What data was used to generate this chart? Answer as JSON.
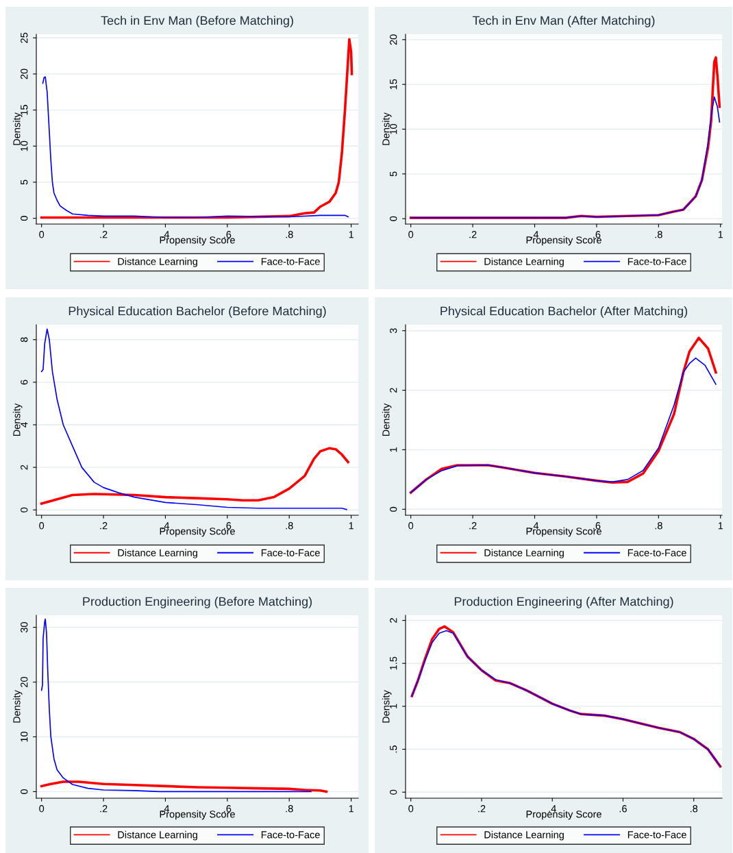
{
  "chart_data": [
    {
      "type": "line",
      "title": "Tech in Env Man (Before Matching)",
      "xlabel": "Propensity Score",
      "ylabel": "Density",
      "xlim": [
        -0.017,
        1.023
      ],
      "ylim": [
        -0.8,
        25.5
      ],
      "xticks": [
        0,
        {
          "value": 0.2,
          "label": ".2"
        },
        {
          "value": 0.4,
          "label": ".4"
        },
        {
          "value": 0.6,
          "label": ".6"
        },
        {
          "value": 0.8,
          "label": ".8"
        },
        1
      ],
      "yticks": [
        0,
        5,
        10,
        15,
        20,
        25
      ],
      "grid": "y",
      "legend": "bottom",
      "series": [
        {
          "name": "Distance Learning",
          "color": "#ff0000",
          "x": [
            0.0,
            0.2,
            0.4,
            0.6,
            0.8,
            0.85,
            0.88,
            0.9,
            0.93,
            0.95,
            0.96,
            0.97,
            0.98,
            0.99,
            0.994,
            1.0,
            1.002
          ],
          "values": [
            0.1,
            0.1,
            0.1,
            0.1,
            0.3,
            0.7,
            0.8,
            1.6,
            2.3,
            3.5,
            5,
            9,
            15,
            22,
            24.8,
            23,
            20
          ]
        },
        {
          "name": "Face-to-Face",
          "color": "#0000ff",
          "x": [
            0.004,
            0.008,
            0.012,
            0.018,
            0.025,
            0.03,
            0.035,
            0.04,
            0.05,
            0.06,
            0.08,
            0.1,
            0.15,
            0.2,
            0.3,
            0.4,
            0.5,
            0.6,
            0.8,
            0.9,
            0.98,
            0.99
          ],
          "values": [
            18.7,
            19.5,
            19.6,
            17.5,
            12,
            8,
            5,
            3.5,
            2.5,
            1.7,
            1.1,
            0.6,
            0.4,
            0.3,
            0.3,
            0.1,
            0.1,
            0.3,
            0.2,
            0.4,
            0.4,
            0.2
          ]
        }
      ]
    },
    {
      "type": "line",
      "title": "Tech in Env Man (After Matching)",
      "xlabel": "Propensity Score",
      "ylabel": "Density",
      "xlim": [
        -0.017,
        1.005
      ],
      "ylim": [
        -0.6,
        20.6
      ],
      "xticks": [
        0,
        {
          "value": 0.2,
          "label": ".2"
        },
        {
          "value": 0.4,
          "label": ".4"
        },
        {
          "value": 0.6,
          "label": ".6"
        },
        {
          "value": 0.8,
          "label": ".8"
        },
        1
      ],
      "yticks": [
        0,
        5,
        10,
        15,
        20
      ],
      "grid": "y",
      "legend": "bottom",
      "series": [
        {
          "name": "Distance Learning",
          "color": "#ff0000",
          "x": [
            0.0,
            0.5,
            0.55,
            0.6,
            0.7,
            0.8,
            0.85,
            0.88,
            0.92,
            0.94,
            0.96,
            0.97,
            0.976,
            0.98,
            0.985,
            0.99,
            0.997
          ],
          "values": [
            0.1,
            0.1,
            0.3,
            0.2,
            0.3,
            0.4,
            0.8,
            1.0,
            2.5,
            4.3,
            8,
            11,
            15,
            17.5,
            18,
            16,
            12.5
          ]
        },
        {
          "name": "Face-to-Face",
          "color": "#0000ff",
          "x": [
            0.0,
            0.5,
            0.55,
            0.6,
            0.7,
            0.8,
            0.85,
            0.88,
            0.92,
            0.94,
            0.96,
            0.97,
            0.98,
            0.99,
            0.997
          ],
          "values": [
            0.1,
            0.1,
            0.3,
            0.2,
            0.3,
            0.4,
            0.8,
            1.0,
            2.5,
            4.3,
            8.5,
            11.5,
            13.6,
            12.5,
            10.8
          ]
        }
      ]
    },
    {
      "type": "line",
      "title": "Physical Education Bachelor (Before Matching)",
      "xlabel": "Propensity Score",
      "ylabel": "Density",
      "xlim": [
        -0.017,
        1.023
      ],
      "ylim": [
        -0.25,
        8.7
      ],
      "xticks": [
        0,
        {
          "value": 0.2,
          "label": ".2"
        },
        {
          "value": 0.4,
          "label": ".4"
        },
        {
          "value": 0.6,
          "label": ".6"
        },
        {
          "value": 0.8,
          "label": ".8"
        },
        1
      ],
      "yticks": [
        0,
        2,
        4,
        6,
        8
      ],
      "grid": "y",
      "legend": "bottom",
      "series": [
        {
          "name": "Distance Learning",
          "color": "#ff0000",
          "x": [
            0.0,
            0.05,
            0.1,
            0.17,
            0.3,
            0.4,
            0.5,
            0.6,
            0.65,
            0.7,
            0.75,
            0.8,
            0.85,
            0.88,
            0.9,
            0.93,
            0.95,
            0.97,
            0.99
          ],
          "values": [
            0.3,
            0.5,
            0.7,
            0.75,
            0.7,
            0.6,
            0.55,
            0.5,
            0.45,
            0.45,
            0.6,
            1.0,
            1.6,
            2.4,
            2.75,
            2.9,
            2.85,
            2.6,
            2.25
          ]
        },
        {
          "name": "Face-to-Face",
          "color": "#0000ff",
          "x": [
            0.0,
            0.005,
            0.01,
            0.018,
            0.025,
            0.035,
            0.05,
            0.07,
            0.1,
            0.13,
            0.17,
            0.2,
            0.25,
            0.3,
            0.4,
            0.5,
            0.6,
            0.7,
            0.8,
            0.97,
            0.985
          ],
          "values": [
            6.5,
            6.6,
            7.8,
            8.5,
            8,
            6.5,
            5.2,
            4,
            3,
            2,
            1.3,
            1.05,
            0.8,
            0.6,
            0.35,
            0.25,
            0.12,
            0.08,
            0.08,
            0.08,
            0.02
          ]
        }
      ]
    },
    {
      "type": "line",
      "title": "Physical Education Bachelor (After Matching)",
      "xlabel": "Propensity Score",
      "ylabel": "Density",
      "xlim": [
        -0.017,
        1.005
      ],
      "ylim": [
        -0.1,
        3.1
      ],
      "xticks": [
        0,
        {
          "value": 0.2,
          "label": ".2"
        },
        {
          "value": 0.4,
          "label": ".4"
        },
        {
          "value": 0.6,
          "label": ".6"
        },
        {
          "value": 0.8,
          "label": ".8"
        },
        1
      ],
      "yticks": [
        0,
        1,
        2,
        3
      ],
      "grid": "y",
      "legend": "bottom",
      "series": [
        {
          "name": "Distance Learning",
          "color": "#ff0000",
          "x": [
            0.0,
            0.05,
            0.1,
            0.15,
            0.25,
            0.3,
            0.4,
            0.5,
            0.6,
            0.65,
            0.7,
            0.75,
            0.8,
            0.85,
            0.88,
            0.9,
            0.93,
            0.96,
            0.985
          ],
          "values": [
            0.28,
            0.5,
            0.68,
            0.74,
            0.74,
            0.7,
            0.61,
            0.55,
            0.48,
            0.45,
            0.46,
            0.6,
            0.98,
            1.6,
            2.3,
            2.65,
            2.88,
            2.7,
            2.3
          ]
        },
        {
          "name": "Face-to-Face",
          "color": "#0000ff",
          "x": [
            0.0,
            0.05,
            0.1,
            0.15,
            0.25,
            0.3,
            0.4,
            0.5,
            0.6,
            0.65,
            0.7,
            0.75,
            0.8,
            0.85,
            0.88,
            0.9,
            0.92,
            0.95,
            0.985
          ],
          "values": [
            0.28,
            0.5,
            0.65,
            0.73,
            0.74,
            0.7,
            0.61,
            0.55,
            0.48,
            0.46,
            0.5,
            0.65,
            1.03,
            1.75,
            2.3,
            2.45,
            2.54,
            2.42,
            2.1
          ]
        }
      ]
    },
    {
      "type": "line",
      "title": "Production Engineering (Before Matching)",
      "xlabel": "Propensity Score",
      "ylabel": "Density",
      "xlim": [
        -0.017,
        1.023
      ],
      "ylim": [
        -1.2,
        32.2
      ],
      "xticks": [
        0,
        {
          "value": 0.2,
          "label": ".2"
        },
        {
          "value": 0.4,
          "label": ".4"
        },
        {
          "value": 0.6,
          "label": ".6"
        },
        {
          "value": 0.8,
          "label": ".8"
        },
        1
      ],
      "yticks": [
        0,
        10,
        20,
        30
      ],
      "grid": "y",
      "legend": "bottom",
      "series": [
        {
          "name": "Distance Learning",
          "color": "#ff0000",
          "x": [
            0.0,
            0.03,
            0.07,
            0.12,
            0.2,
            0.3,
            0.4,
            0.5,
            0.6,
            0.7,
            0.8,
            0.85,
            0.9,
            0.92
          ],
          "values": [
            1,
            1.4,
            1.8,
            1.8,
            1.4,
            1.2,
            1.0,
            0.8,
            0.7,
            0.6,
            0.5,
            0.3,
            0.2,
            0.0
          ]
        },
        {
          "name": "Face-to-Face",
          "color": "#0000ff",
          "x": [
            0.0,
            0.003,
            0.005,
            0.01,
            0.012,
            0.016,
            0.02,
            0.025,
            0.03,
            0.04,
            0.05,
            0.07,
            0.1,
            0.15,
            0.2,
            0.3,
            0.38,
            0.6,
            0.87
          ],
          "values": [
            18.5,
            19.5,
            28,
            31,
            31.5,
            29,
            22,
            15,
            10,
            6,
            4,
            2.5,
            1.3,
            0.6,
            0.3,
            0.2,
            0,
            0,
            0
          ]
        }
      ]
    },
    {
      "type": "line",
      "title": "Production Engineering (After Matching)",
      "xlabel": "Propensity Score",
      "ylabel": "Density",
      "xlim": [
        -0.015,
        0.88
      ],
      "ylim": [
        -0.07,
        2.06
      ],
      "xticks": [
        0,
        {
          "value": 0.2,
          "label": ".2"
        },
        {
          "value": 0.4,
          "label": ".4"
        },
        {
          "value": 0.6,
          "label": ".6"
        },
        {
          "value": 0.8,
          "label": ".8"
        }
      ],
      "yticks": [
        0,
        {
          "value": 0.5,
          "label": ".5"
        },
        1,
        1.5,
        2
      ],
      "grid": "y",
      "legend": "bottom",
      "series": [
        {
          "name": "Distance Learning",
          "color": "#ff0000",
          "x": [
            0.003,
            0.02,
            0.04,
            0.06,
            0.08,
            0.095,
            0.12,
            0.16,
            0.2,
            0.24,
            0.28,
            0.33,
            0.4,
            0.45,
            0.48,
            0.55,
            0.6,
            0.65,
            0.7,
            0.76,
            0.8,
            0.84,
            0.875
          ],
          "values": [
            1.12,
            1.3,
            1.55,
            1.78,
            1.9,
            1.93,
            1.86,
            1.58,
            1.42,
            1.3,
            1.27,
            1.18,
            1.03,
            0.95,
            0.91,
            0.89,
            0.85,
            0.8,
            0.75,
            0.7,
            0.62,
            0.5,
            0.3
          ]
        },
        {
          "name": "Face-to-Face",
          "color": "#0000ff",
          "x": [
            0.003,
            0.02,
            0.04,
            0.06,
            0.08,
            0.1,
            0.12,
            0.16,
            0.2,
            0.24,
            0.28,
            0.33,
            0.4,
            0.45,
            0.48,
            0.55,
            0.6,
            0.65,
            0.7,
            0.76,
            0.8,
            0.84,
            0.875
          ],
          "values": [
            1.12,
            1.3,
            1.53,
            1.74,
            1.85,
            1.88,
            1.85,
            1.58,
            1.42,
            1.31,
            1.27,
            1.18,
            1.03,
            0.95,
            0.91,
            0.89,
            0.85,
            0.8,
            0.75,
            0.7,
            0.62,
            0.5,
            0.3
          ]
        }
      ]
    }
  ]
}
